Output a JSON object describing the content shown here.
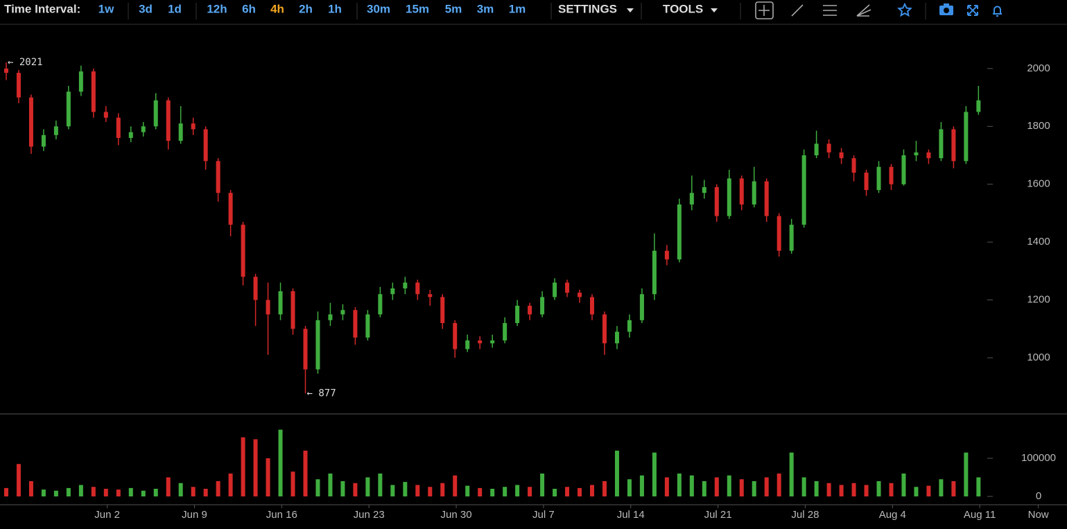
{
  "toolbar": {
    "label": "Time Interval:",
    "intervals": [
      "1w",
      "3d",
      "1d",
      "12h",
      "6h",
      "4h",
      "2h",
      "1h",
      "30m",
      "15m",
      "5m",
      "3m",
      "1m"
    ],
    "active": "4h",
    "menus": [
      "SETTINGS",
      "TOOLS"
    ]
  },
  "chart_data": [
    {
      "type": "candlestick",
      "up_color": "#3fae3f",
      "down_color": "#d62828",
      "open": [
        2000,
        1985,
        1900,
        1730,
        1770,
        1800,
        1920,
        1990,
        1850,
        1830,
        1760,
        1780,
        1800,
        1890,
        1750,
        1810,
        1790,
        1680,
        1570,
        1460,
        1280,
        1200,
        1150,
        1230,
        1100,
        960,
        1130,
        1150,
        1165,
        1070,
        1150,
        1220,
        1240,
        1260,
        1220,
        1210,
        1120,
        1030,
        1060,
        1050,
        1060,
        1120,
        1180,
        1150,
        1210,
        1260,
        1225,
        1210,
        1150,
        1050,
        1090,
        1130,
        1220,
        1370,
        1340,
        1530,
        1570,
        1590,
        1490,
        1620,
        1530,
        1610,
        1490,
        1370,
        1460,
        1700,
        1740,
        1710,
        1690,
        1640,
        1580,
        1660,
        1600,
        1700,
        1710,
        1690,
        1790,
        1680,
        1850
      ],
      "high": [
        2021,
        1995,
        1910,
        1790,
        1820,
        1940,
        2010,
        2000,
        1870,
        1845,
        1800,
        1815,
        1915,
        1900,
        1870,
        1830,
        1800,
        1690,
        1580,
        1470,
        1290,
        1260,
        1260,
        1240,
        1110,
        1160,
        1190,
        1185,
        1175,
        1165,
        1245,
        1260,
        1280,
        1270,
        1235,
        1220,
        1130,
        1080,
        1075,
        1080,
        1140,
        1200,
        1190,
        1230,
        1275,
        1270,
        1235,
        1220,
        1160,
        1110,
        1150,
        1240,
        1430,
        1390,
        1550,
        1630,
        1615,
        1600,
        1650,
        1630,
        1660,
        1620,
        1500,
        1480,
        1720,
        1785,
        1755,
        1725,
        1700,
        1650,
        1680,
        1670,
        1720,
        1750,
        1720,
        1815,
        1800,
        1870,
        1940
      ],
      "low": [
        1960,
        1880,
        1705,
        1715,
        1755,
        1790,
        1905,
        1830,
        1815,
        1735,
        1745,
        1765,
        1790,
        1720,
        1740,
        1770,
        1650,
        1540,
        1420,
        1250,
        1110,
        1010,
        1130,
        1080,
        877,
        945,
        1110,
        1130,
        1045,
        1060,
        1140,
        1200,
        1220,
        1200,
        1180,
        1100,
        1000,
        1020,
        1030,
        1035,
        1050,
        1110,
        1130,
        1140,
        1200,
        1210,
        1190,
        1130,
        1010,
        1030,
        1070,
        1120,
        1200,
        1320,
        1330,
        1510,
        1550,
        1470,
        1480,
        1510,
        1520,
        1470,
        1350,
        1360,
        1450,
        1690,
        1690,
        1670,
        1610,
        1560,
        1570,
        1580,
        1595,
        1680,
        1670,
        1680,
        1655,
        1670,
        1840
      ],
      "close": [
        1985,
        1900,
        1730,
        1770,
        1800,
        1920,
        1990,
        1850,
        1830,
        1760,
        1780,
        1800,
        1890,
        1750,
        1810,
        1790,
        1680,
        1570,
        1460,
        1280,
        1200,
        1150,
        1230,
        1100,
        960,
        1130,
        1150,
        1165,
        1070,
        1150,
        1220,
        1240,
        1260,
        1220,
        1210,
        1120,
        1030,
        1060,
        1050,
        1060,
        1120,
        1180,
        1150,
        1210,
        1260,
        1225,
        1210,
        1150,
        1050,
        1090,
        1130,
        1220,
        1370,
        1340,
        1530,
        1570,
        1590,
        1490,
        1620,
        1530,
        1610,
        1490,
        1370,
        1460,
        1700,
        1740,
        1710,
        1690,
        1640,
        1580,
        1660,
        1600,
        1700,
        1710,
        1690,
        1790,
        1680,
        1850,
        1890
      ],
      "xlim": [
        0,
        85.6
      ],
      "ylim": [
        806,
        2153
      ],
      "yticks": [
        1000,
        1200,
        1400,
        1600,
        1800,
        2000
      ],
      "annotations": [
        {
          "value": 2021,
          "label": "← 2021"
        },
        {
          "value": 877,
          "label": "← 877"
        }
      ]
    },
    {
      "type": "bar",
      "values": [
        22000,
        85000,
        40000,
        18000,
        15000,
        22000,
        30000,
        25000,
        20000,
        18000,
        22000,
        15000,
        20000,
        50000,
        35000,
        25000,
        20000,
        40000,
        60000,
        155000,
        150000,
        100000,
        175000,
        65000,
        120000,
        45000,
        60000,
        40000,
        35000,
        50000,
        60000,
        30000,
        38000,
        30000,
        25000,
        35000,
        55000,
        28000,
        22000,
        20000,
        25000,
        30000,
        25000,
        60000,
        20000,
        25000,
        22000,
        30000,
        40000,
        120000,
        45000,
        55000,
        115000,
        50000,
        60000,
        55000,
        40000,
        50000,
        55000,
        45000,
        40000,
        50000,
        60000,
        115000,
        50000,
        40000,
        35000,
        30000,
        35000,
        30000,
        40000,
        35000,
        60000,
        25000,
        28000,
        45000,
        40000,
        115000,
        50000
      ],
      "xlim": [
        0,
        85.6
      ],
      "ylim": [
        -21800,
        214500
      ],
      "yticks": [
        0,
        100000
      ],
      "xticks": [
        {
          "value": 8.6,
          "label": "Jun 2"
        },
        {
          "value": 15.6,
          "label": "Jun 9"
        },
        {
          "value": 22.6,
          "label": "Jun 16"
        },
        {
          "value": 29.6,
          "label": "Jun 23"
        },
        {
          "value": 36.6,
          "label": "Jun 30"
        },
        {
          "value": 43.6,
          "label": "Jul 7"
        },
        {
          "value": 50.6,
          "label": "Jul 14"
        },
        {
          "value": 57.6,
          "label": "Jul 21"
        },
        {
          "value": 64.6,
          "label": "Jul 28"
        },
        {
          "value": 71.6,
          "label": "Aug 4"
        },
        {
          "value": 78.6,
          "label": "Aug 11"
        },
        {
          "value": 83.3,
          "label": "Now"
        }
      ]
    }
  ]
}
